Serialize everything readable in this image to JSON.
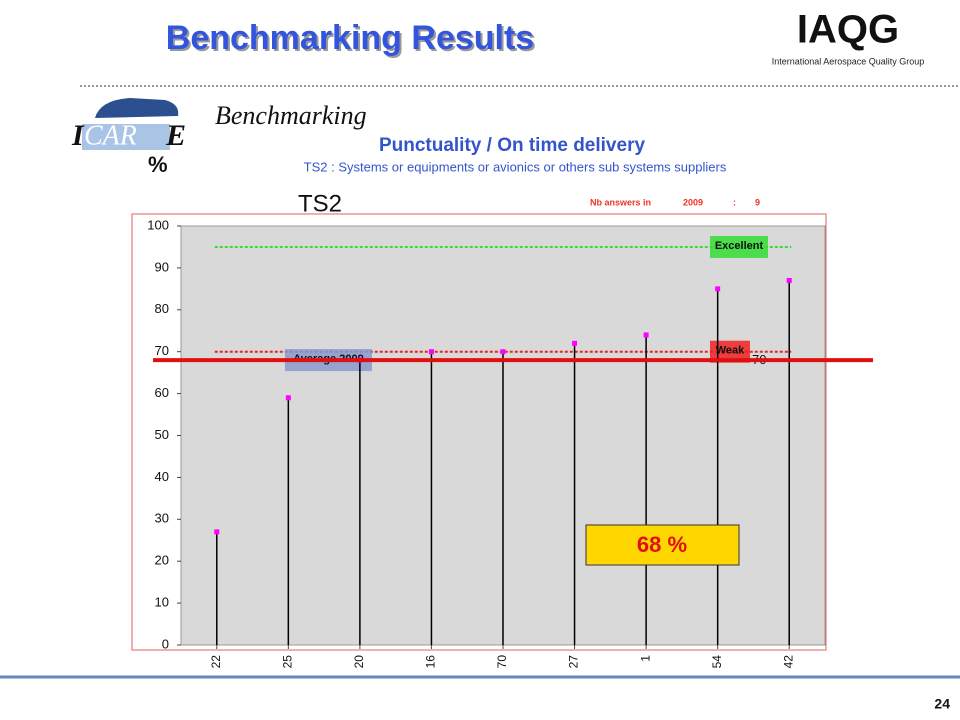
{
  "header": {
    "title": "Benchmarking Results",
    "logo": "IAQG",
    "logo_subtitle": "International Aerospace Quality Group"
  },
  "icare": {
    "logo_left": "I",
    "logo_middle": "CAR",
    "logo_right": "E",
    "percent": "%",
    "label": "Benchmarking"
  },
  "page_number": "24",
  "chart_data": {
    "type": "lollipop",
    "title": "Punctuality / On time delivery",
    "subtitle": "TS2 : Systems or equipments or avionics or others sub systems suppliers",
    "label": "TS2",
    "answers_label": "Nb answers in",
    "answers_year": "2009",
    "answers_sep": ":",
    "answers_count": "9",
    "categories": [
      "22",
      "25",
      "20",
      "16",
      "70",
      "27",
      "1",
      "54",
      "42"
    ],
    "values": [
      27,
      59,
      68,
      70,
      70,
      72,
      74,
      85,
      87
    ],
    "color": "#000000",
    "marker_color": "#ff00ff",
    "ylim": [
      0,
      100
    ],
    "yticks": [
      0,
      10,
      20,
      30,
      40,
      50,
      60,
      70,
      80,
      90,
      100
    ],
    "reference_lines": [
      {
        "name": "Excellent",
        "value": 95,
        "color": "#33dd33"
      },
      {
        "name": "Weak",
        "value": 70,
        "color": "#ee2222"
      },
      {
        "name": "Average 2009",
        "value": 68,
        "color": "#000000"
      }
    ],
    "highlight": {
      "value": 68,
      "value_label": "68 %",
      "color": "#e01010"
    }
  }
}
